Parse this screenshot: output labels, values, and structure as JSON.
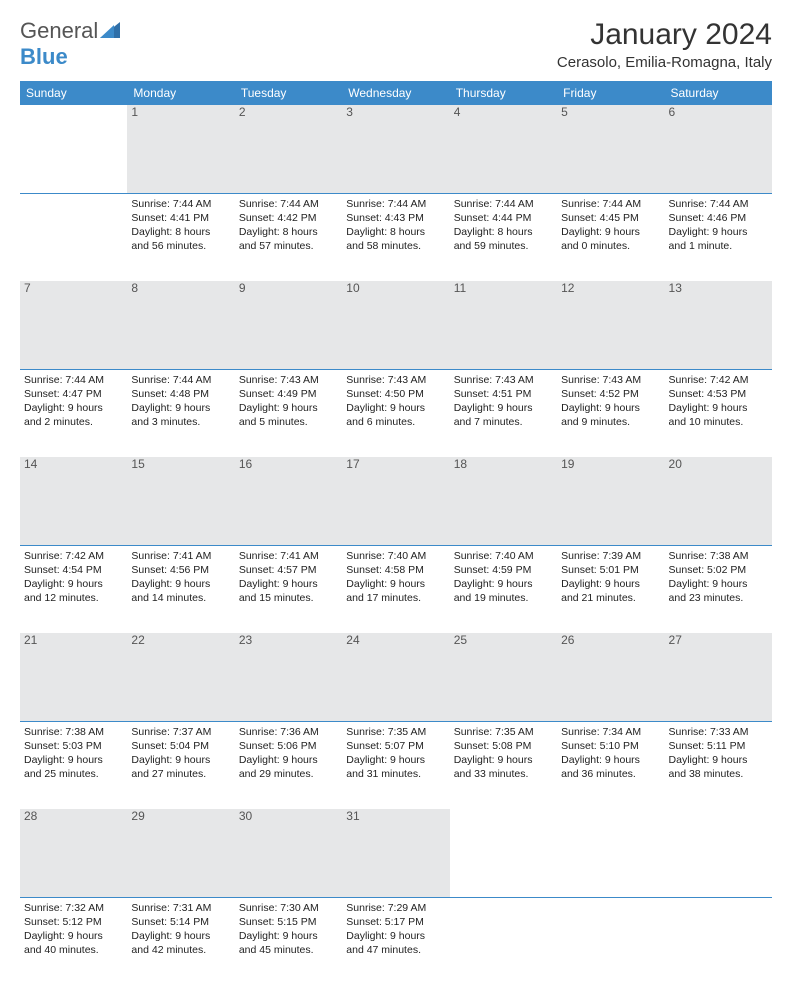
{
  "logo": {
    "word1": "General",
    "word2": "Blue"
  },
  "title": "January 2024",
  "location": "Cerasolo, Emilia-Romagna, Italy",
  "colors": {
    "header_bg": "#3c8ac9",
    "header_text": "#ffffff",
    "daynum_bg": "#e6e7e8",
    "daynum_border": "#3c8ac9",
    "page_bg": "#ffffff",
    "text": "#333333"
  },
  "weekdays": [
    "Sunday",
    "Monday",
    "Tuesday",
    "Wednesday",
    "Thursday",
    "Friday",
    "Saturday"
  ],
  "weeks": [
    {
      "nums": [
        "",
        "1",
        "2",
        "3",
        "4",
        "5",
        "6"
      ],
      "cells": [
        null,
        {
          "sunrise": "Sunrise: 7:44 AM",
          "sunset": "Sunset: 4:41 PM",
          "dl1": "Daylight: 8 hours",
          "dl2": "and 56 minutes."
        },
        {
          "sunrise": "Sunrise: 7:44 AM",
          "sunset": "Sunset: 4:42 PM",
          "dl1": "Daylight: 8 hours",
          "dl2": "and 57 minutes."
        },
        {
          "sunrise": "Sunrise: 7:44 AM",
          "sunset": "Sunset: 4:43 PM",
          "dl1": "Daylight: 8 hours",
          "dl2": "and 58 minutes."
        },
        {
          "sunrise": "Sunrise: 7:44 AM",
          "sunset": "Sunset: 4:44 PM",
          "dl1": "Daylight: 8 hours",
          "dl2": "and 59 minutes."
        },
        {
          "sunrise": "Sunrise: 7:44 AM",
          "sunset": "Sunset: 4:45 PM",
          "dl1": "Daylight: 9 hours",
          "dl2": "and 0 minutes."
        },
        {
          "sunrise": "Sunrise: 7:44 AM",
          "sunset": "Sunset: 4:46 PM",
          "dl1": "Daylight: 9 hours",
          "dl2": "and 1 minute."
        }
      ]
    },
    {
      "nums": [
        "7",
        "8",
        "9",
        "10",
        "11",
        "12",
        "13"
      ],
      "cells": [
        {
          "sunrise": "Sunrise: 7:44 AM",
          "sunset": "Sunset: 4:47 PM",
          "dl1": "Daylight: 9 hours",
          "dl2": "and 2 minutes."
        },
        {
          "sunrise": "Sunrise: 7:44 AM",
          "sunset": "Sunset: 4:48 PM",
          "dl1": "Daylight: 9 hours",
          "dl2": "and 3 minutes."
        },
        {
          "sunrise": "Sunrise: 7:43 AM",
          "sunset": "Sunset: 4:49 PM",
          "dl1": "Daylight: 9 hours",
          "dl2": "and 5 minutes."
        },
        {
          "sunrise": "Sunrise: 7:43 AM",
          "sunset": "Sunset: 4:50 PM",
          "dl1": "Daylight: 9 hours",
          "dl2": "and 6 minutes."
        },
        {
          "sunrise": "Sunrise: 7:43 AM",
          "sunset": "Sunset: 4:51 PM",
          "dl1": "Daylight: 9 hours",
          "dl2": "and 7 minutes."
        },
        {
          "sunrise": "Sunrise: 7:43 AM",
          "sunset": "Sunset: 4:52 PM",
          "dl1": "Daylight: 9 hours",
          "dl2": "and 9 minutes."
        },
        {
          "sunrise": "Sunrise: 7:42 AM",
          "sunset": "Sunset: 4:53 PM",
          "dl1": "Daylight: 9 hours",
          "dl2": "and 10 minutes."
        }
      ]
    },
    {
      "nums": [
        "14",
        "15",
        "16",
        "17",
        "18",
        "19",
        "20"
      ],
      "cells": [
        {
          "sunrise": "Sunrise: 7:42 AM",
          "sunset": "Sunset: 4:54 PM",
          "dl1": "Daylight: 9 hours",
          "dl2": "and 12 minutes."
        },
        {
          "sunrise": "Sunrise: 7:41 AM",
          "sunset": "Sunset: 4:56 PM",
          "dl1": "Daylight: 9 hours",
          "dl2": "and 14 minutes."
        },
        {
          "sunrise": "Sunrise: 7:41 AM",
          "sunset": "Sunset: 4:57 PM",
          "dl1": "Daylight: 9 hours",
          "dl2": "and 15 minutes."
        },
        {
          "sunrise": "Sunrise: 7:40 AM",
          "sunset": "Sunset: 4:58 PM",
          "dl1": "Daylight: 9 hours",
          "dl2": "and 17 minutes."
        },
        {
          "sunrise": "Sunrise: 7:40 AM",
          "sunset": "Sunset: 4:59 PM",
          "dl1": "Daylight: 9 hours",
          "dl2": "and 19 minutes."
        },
        {
          "sunrise": "Sunrise: 7:39 AM",
          "sunset": "Sunset: 5:01 PM",
          "dl1": "Daylight: 9 hours",
          "dl2": "and 21 minutes."
        },
        {
          "sunrise": "Sunrise: 7:38 AM",
          "sunset": "Sunset: 5:02 PM",
          "dl1": "Daylight: 9 hours",
          "dl2": "and 23 minutes."
        }
      ]
    },
    {
      "nums": [
        "21",
        "22",
        "23",
        "24",
        "25",
        "26",
        "27"
      ],
      "cells": [
        {
          "sunrise": "Sunrise: 7:38 AM",
          "sunset": "Sunset: 5:03 PM",
          "dl1": "Daylight: 9 hours",
          "dl2": "and 25 minutes."
        },
        {
          "sunrise": "Sunrise: 7:37 AM",
          "sunset": "Sunset: 5:04 PM",
          "dl1": "Daylight: 9 hours",
          "dl2": "and 27 minutes."
        },
        {
          "sunrise": "Sunrise: 7:36 AM",
          "sunset": "Sunset: 5:06 PM",
          "dl1": "Daylight: 9 hours",
          "dl2": "and 29 minutes."
        },
        {
          "sunrise": "Sunrise: 7:35 AM",
          "sunset": "Sunset: 5:07 PM",
          "dl1": "Daylight: 9 hours",
          "dl2": "and 31 minutes."
        },
        {
          "sunrise": "Sunrise: 7:35 AM",
          "sunset": "Sunset: 5:08 PM",
          "dl1": "Daylight: 9 hours",
          "dl2": "and 33 minutes."
        },
        {
          "sunrise": "Sunrise: 7:34 AM",
          "sunset": "Sunset: 5:10 PM",
          "dl1": "Daylight: 9 hours",
          "dl2": "and 36 minutes."
        },
        {
          "sunrise": "Sunrise: 7:33 AM",
          "sunset": "Sunset: 5:11 PM",
          "dl1": "Daylight: 9 hours",
          "dl2": "and 38 minutes."
        }
      ]
    },
    {
      "nums": [
        "28",
        "29",
        "30",
        "31",
        "",
        "",
        ""
      ],
      "cells": [
        {
          "sunrise": "Sunrise: 7:32 AM",
          "sunset": "Sunset: 5:12 PM",
          "dl1": "Daylight: 9 hours",
          "dl2": "and 40 minutes."
        },
        {
          "sunrise": "Sunrise: 7:31 AM",
          "sunset": "Sunset: 5:14 PM",
          "dl1": "Daylight: 9 hours",
          "dl2": "and 42 minutes."
        },
        {
          "sunrise": "Sunrise: 7:30 AM",
          "sunset": "Sunset: 5:15 PM",
          "dl1": "Daylight: 9 hours",
          "dl2": "and 45 minutes."
        },
        {
          "sunrise": "Sunrise: 7:29 AM",
          "sunset": "Sunset: 5:17 PM",
          "dl1": "Daylight: 9 hours",
          "dl2": "and 47 minutes."
        },
        null,
        null,
        null
      ]
    }
  ]
}
